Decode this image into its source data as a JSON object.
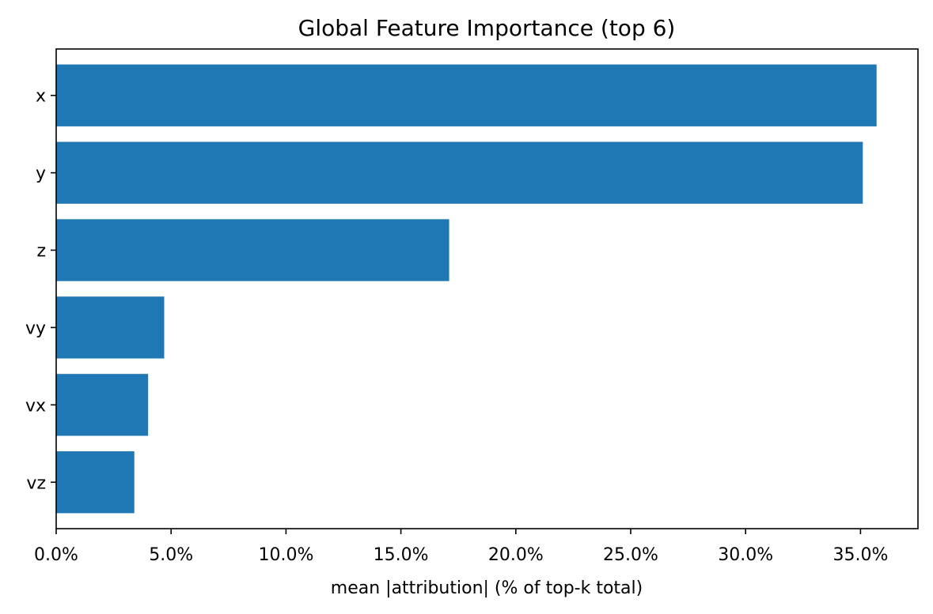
{
  "chart_data": {
    "type": "bar",
    "orientation": "horizontal",
    "title": "Global Feature Importance (top 6)",
    "xlabel": "mean |attribution| (% of top-k total)",
    "ylabel": "",
    "categories": [
      "x",
      "y",
      "z",
      "vy",
      "vx",
      "vz"
    ],
    "values": [
      35.7,
      35.1,
      17.1,
      4.7,
      4.0,
      3.4
    ],
    "xlim": [
      0,
      37.5
    ],
    "xticks": [
      0,
      5,
      10,
      15,
      20,
      25,
      30,
      35
    ],
    "xtick_labels": [
      "0.0%",
      "5.0%",
      "10.0%",
      "15.0%",
      "20.0%",
      "25.0%",
      "30.0%",
      "35.0%"
    ],
    "grid": false,
    "legend": "none",
    "bar_color": "#1f77b4"
  }
}
